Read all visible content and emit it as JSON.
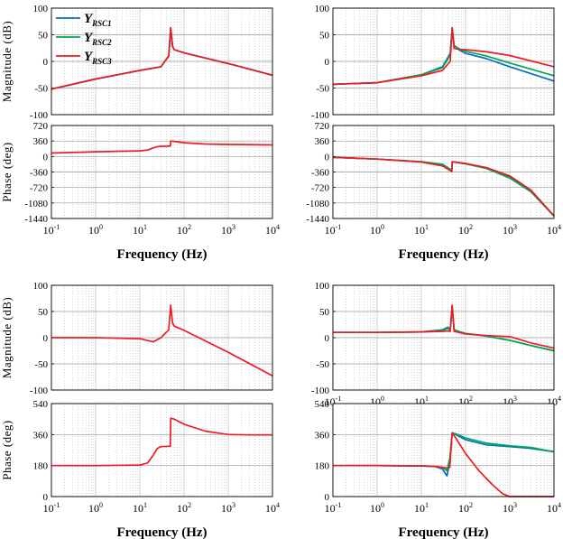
{
  "chart_data": [
    {
      "type": "line",
      "panel": "top-left-magnitude",
      "ylabel": "Magnitude (dB)",
      "ylim": [
        -100,
        100
      ],
      "yticks": [
        "100",
        "50",
        "0",
        "-50",
        "-100"
      ],
      "x_log": true,
      "xlim": [
        0.1,
        10000
      ],
      "legend": {
        "placement": "top-left",
        "entries": [
          {
            "base": "Y",
            "sub": "RSC1",
            "color": "#0072BD"
          },
          {
            "base": "Y",
            "sub": "RSC2",
            "color": "#00A651"
          },
          {
            "base": "Y",
            "sub": "RSC3",
            "color": "#ED1C24"
          }
        ]
      },
      "series": [
        {
          "color": "#0072BD",
          "x": [
            0.1,
            1,
            10,
            30,
            45,
            50,
            55,
            60,
            100,
            1000,
            10000
          ],
          "values": [
            -52,
            -33,
            -17,
            -10,
            10,
            63,
            28,
            22,
            16,
            -4,
            -26
          ]
        },
        {
          "color": "#00A651",
          "x": [
            0.1,
            1,
            10,
            30,
            45,
            50,
            55,
            60,
            100,
            1000,
            10000
          ],
          "values": [
            -52,
            -33,
            -17,
            -10,
            10,
            63,
            28,
            22,
            16,
            -4,
            -26
          ]
        },
        {
          "color": "#ED1C24",
          "x": [
            0.1,
            1,
            10,
            30,
            45,
            50,
            55,
            60,
            100,
            1000,
            10000
          ],
          "values": [
            -52,
            -33,
            -17,
            -10,
            10,
            63,
            28,
            22,
            16,
            -4,
            -26
          ]
        }
      ]
    },
    {
      "type": "line",
      "panel": "top-left-phase",
      "ylabel": "Phase (deg)",
      "ylim": [
        -1440,
        720
      ],
      "yticks": [
        "720",
        "360",
        "0",
        "-360",
        "-720",
        "-1080",
        "-1440"
      ],
      "xlabel": "Frequency (Hz)",
      "xticks": [
        "10-1",
        "100",
        "101",
        "102",
        "103",
        "104"
      ],
      "x_log": true,
      "xlim": [
        0.1,
        10000
      ],
      "series": [
        {
          "color": "#ED1C24",
          "x": [
            0.1,
            1,
            10,
            15,
            20,
            25,
            30,
            45,
            49,
            50,
            60,
            100,
            300,
            1000,
            10000
          ],
          "values": [
            80,
            110,
            130,
            150,
            200,
            230,
            235,
            240,
            245,
            360,
            350,
            320,
            290,
            280,
            270
          ]
        }
      ]
    },
    {
      "type": "line",
      "panel": "top-right-magnitude",
      "ylim": [
        -100,
        100
      ],
      "yticks": [
        "100",
        "50",
        "0",
        "-50",
        "-100"
      ],
      "x_log": true,
      "xlim": [
        0.1,
        10000
      ],
      "series": [
        {
          "color": "#0072BD",
          "x": [
            0.1,
            1,
            10,
            30,
            45,
            50,
            55,
            70,
            100,
            300,
            1000,
            10000
          ],
          "values": [
            -43,
            -40,
            -25,
            -10,
            15,
            63,
            30,
            22,
            15,
            5,
            -10,
            -37
          ]
        },
        {
          "color": "#00A651",
          "x": [
            0.1,
            1,
            10,
            30,
            45,
            50,
            55,
            70,
            100,
            300,
            1000,
            10000
          ],
          "values": [
            -43,
            -40,
            -25,
            -12,
            12,
            63,
            30,
            24,
            19,
            10,
            -3,
            -27
          ]
        },
        {
          "color": "#ED1C24",
          "x": [
            0.1,
            1,
            10,
            30,
            45,
            50,
            55,
            70,
            100,
            300,
            1000,
            10000
          ],
          "values": [
            -43,
            -40,
            -27,
            -17,
            0,
            63,
            24,
            23,
            22,
            18,
            11,
            -10
          ]
        }
      ]
    },
    {
      "type": "line",
      "panel": "top-right-phase",
      "ylim": [
        -1440,
        720
      ],
      "yticks": [
        "720",
        "360",
        "0",
        "-360",
        "-720",
        "-1080",
        "-1440"
      ],
      "xlabel": "Frequency (Hz)",
      "xticks": [
        "10-1",
        "100",
        "101",
        "102",
        "103",
        "104"
      ],
      "x_log": true,
      "xlim": [
        0.1,
        10000
      ],
      "series": [
        {
          "color": "#0072BD",
          "x": [
            0.1,
            1,
            10,
            30,
            49,
            50,
            100,
            300,
            1000,
            3000,
            10000
          ],
          "values": [
            -20,
            -60,
            -120,
            -200,
            -330,
            -120,
            -170,
            -270,
            -480,
            -800,
            -1380
          ]
        },
        {
          "color": "#00A651",
          "x": [
            0.1,
            1,
            10,
            30,
            49,
            50,
            100,
            300,
            1000,
            3000,
            10000
          ],
          "values": [
            -20,
            -60,
            -120,
            -180,
            -320,
            -120,
            -170,
            -280,
            -500,
            -820,
            -1380
          ]
        },
        {
          "color": "#ED1C24",
          "x": [
            0.1,
            1,
            10,
            30,
            49,
            50,
            100,
            300,
            1000,
            3000,
            10000
          ],
          "values": [
            -20,
            -60,
            -130,
            -220,
            -350,
            -120,
            -160,
            -260,
            -450,
            -780,
            -1380
          ]
        }
      ]
    },
    {
      "type": "line",
      "panel": "bottom-left-magnitude",
      "ylabel": "Magnitude (dB)",
      "ylim": [
        -100,
        100
      ],
      "yticks": [
        "100",
        "50",
        "0",
        "-50",
        "-100"
      ],
      "x_log": true,
      "xlim": [
        0.1,
        10000
      ],
      "series": [
        {
          "color": "#ED1C24",
          "x": [
            0.1,
            1,
            10,
            20,
            30,
            45,
            50,
            55,
            60,
            100,
            1000,
            10000
          ],
          "values": [
            0,
            0,
            -2,
            -8,
            0,
            15,
            62,
            28,
            22,
            14,
            -28,
            -73
          ]
        }
      ]
    },
    {
      "type": "line",
      "panel": "bottom-left-phase",
      "ylabel": "Phase (deg)",
      "ylim": [
        0,
        540
      ],
      "yticks": [
        "540",
        "360",
        "180",
        "0"
      ],
      "xlabel": "Frequency (Hz)",
      "xticks": [
        "10-1",
        "100",
        "101",
        "102",
        "103",
        "104"
      ],
      "x_log": true,
      "xlim": [
        0.1,
        10000
      ],
      "series": [
        {
          "color": "#ED1C24",
          "x": [
            0.1,
            1,
            10,
            15,
            20,
            25,
            30,
            45,
            49,
            50,
            60,
            100,
            300,
            1000,
            3000,
            10000
          ],
          "values": [
            180,
            180,
            183,
            195,
            240,
            280,
            290,
            292,
            292,
            455,
            450,
            420,
            380,
            360,
            358,
            358
          ]
        }
      ]
    },
    {
      "type": "line",
      "panel": "bottom-right-magnitude",
      "ylim": [
        -100,
        100
      ],
      "yticks": [
        "100",
        "50",
        "0",
        "-50",
        "-100"
      ],
      "xlabel": "Frequency (Hz)",
      "xticks": [
        "10-1",
        "100",
        "101",
        "102",
        "103",
        "104"
      ],
      "x_log": true,
      "xlim": [
        0.1,
        10000
      ],
      "series": [
        {
          "color": "#0072BD",
          "x": [
            0.1,
            1,
            10,
            30,
            40,
            45,
            50,
            55,
            70,
            100,
            300,
            1000,
            3000,
            10000
          ],
          "values": [
            10,
            10,
            11,
            15,
            20,
            15,
            60,
            15,
            12,
            8,
            3,
            -5,
            -15,
            -25
          ]
        },
        {
          "color": "#00A651",
          "x": [
            0.1,
            1,
            10,
            30,
            40,
            45,
            50,
            55,
            70,
            100,
            300,
            1000,
            3000,
            10000
          ],
          "values": [
            10,
            10,
            11,
            14,
            18,
            14,
            60,
            15,
            12,
            8,
            3,
            -5,
            -15,
            -25
          ]
        },
        {
          "color": "#ED1C24",
          "x": [
            0.1,
            1,
            10,
            30,
            40,
            45,
            50,
            55,
            70,
            100,
            300,
            1000,
            3000,
            10000
          ],
          "values": [
            10,
            10,
            11,
            12,
            13,
            12,
            62,
            12,
            10,
            7,
            4,
            2,
            -10,
            -20
          ]
        }
      ]
    },
    {
      "type": "line",
      "panel": "bottom-right-phase",
      "ylim": [
        0,
        540
      ],
      "yticks": [
        "540",
        "360",
        "180",
        "0"
      ],
      "xlabel": "Frequency (Hz)",
      "xticks": [
        "10-1",
        "100",
        "101",
        "102",
        "103",
        "104"
      ],
      "x_log": true,
      "xlim": [
        0.1,
        10000
      ],
      "series": [
        {
          "color": "#0072BD",
          "x": [
            0.1,
            1,
            10,
            20,
            30,
            38,
            44,
            50,
            60,
            100,
            300,
            1000,
            3000,
            10000
          ],
          "values": [
            180,
            180,
            178,
            175,
            160,
            120,
            200,
            370,
            360,
            330,
            300,
            290,
            280,
            260
          ]
        },
        {
          "color": "#00A651",
          "x": [
            0.1,
            1,
            10,
            20,
            30,
            38,
            44,
            50,
            60,
            100,
            300,
            1000,
            3000,
            10000
          ],
          "values": [
            180,
            180,
            178,
            175,
            170,
            150,
            220,
            370,
            365,
            340,
            310,
            295,
            285,
            260
          ]
        },
        {
          "color": "#ED1C24",
          "x": [
            0.1,
            1,
            10,
            20,
            30,
            38,
            44,
            50,
            60,
            100,
            200,
            400,
            700,
            1000,
            10000
          ],
          "values": [
            180,
            180,
            178,
            175,
            170,
            165,
            170,
            370,
            340,
            250,
            150,
            70,
            15,
            0,
            0
          ]
        }
      ]
    }
  ]
}
